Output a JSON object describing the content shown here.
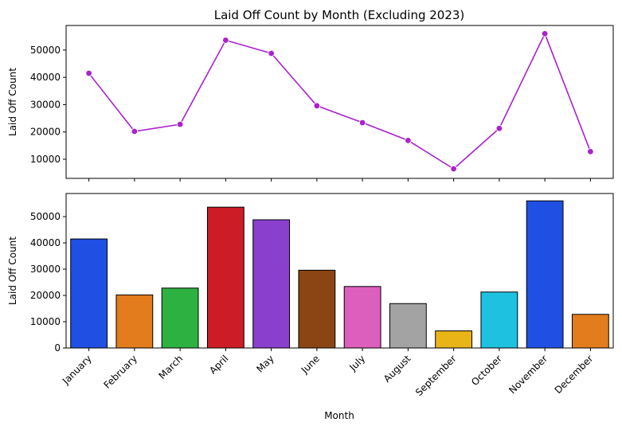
{
  "chart_data": [
    {
      "type": "line",
      "title": "Laid Off Count by Month (Excluding 2023)",
      "xlabel": "",
      "ylabel": "Laid Off Count",
      "categories": [
        "January",
        "February",
        "March",
        "April",
        "May",
        "June",
        "July",
        "August",
        "September",
        "October",
        "November",
        "December"
      ],
      "values": [
        41500,
        20200,
        22800,
        53600,
        48800,
        29600,
        23400,
        16900,
        6500,
        21300,
        56000,
        12800
      ],
      "yticks": [
        10000,
        20000,
        30000,
        40000,
        50000
      ],
      "ylim": [
        3000,
        59000
      ],
      "color": "#aa22cc",
      "grid": false,
      "legend": "none"
    },
    {
      "type": "bar",
      "title": "",
      "xlabel": "Month",
      "ylabel": "Laid Off Count",
      "categories": [
        "January",
        "February",
        "March",
        "April",
        "May",
        "June",
        "July",
        "August",
        "September",
        "October",
        "November",
        "December"
      ],
      "values": [
        41500,
        20200,
        22800,
        53600,
        48800,
        29600,
        23400,
        16900,
        6500,
        21300,
        56000,
        12800
      ],
      "colors": [
        "#1f4fe3",
        "#e27c1c",
        "#2db141",
        "#cc1c26",
        "#8a3fcd",
        "#8b4514",
        "#dc5fbd",
        "#a3a3a3",
        "#e8b418",
        "#1ec2e0",
        "#1f4fe3",
        "#e27c1c"
      ],
      "yticks": [
        0,
        10000,
        20000,
        30000,
        40000,
        50000
      ],
      "ylim": [
        0,
        58800
      ],
      "grid": false,
      "legend": "none"
    }
  ]
}
